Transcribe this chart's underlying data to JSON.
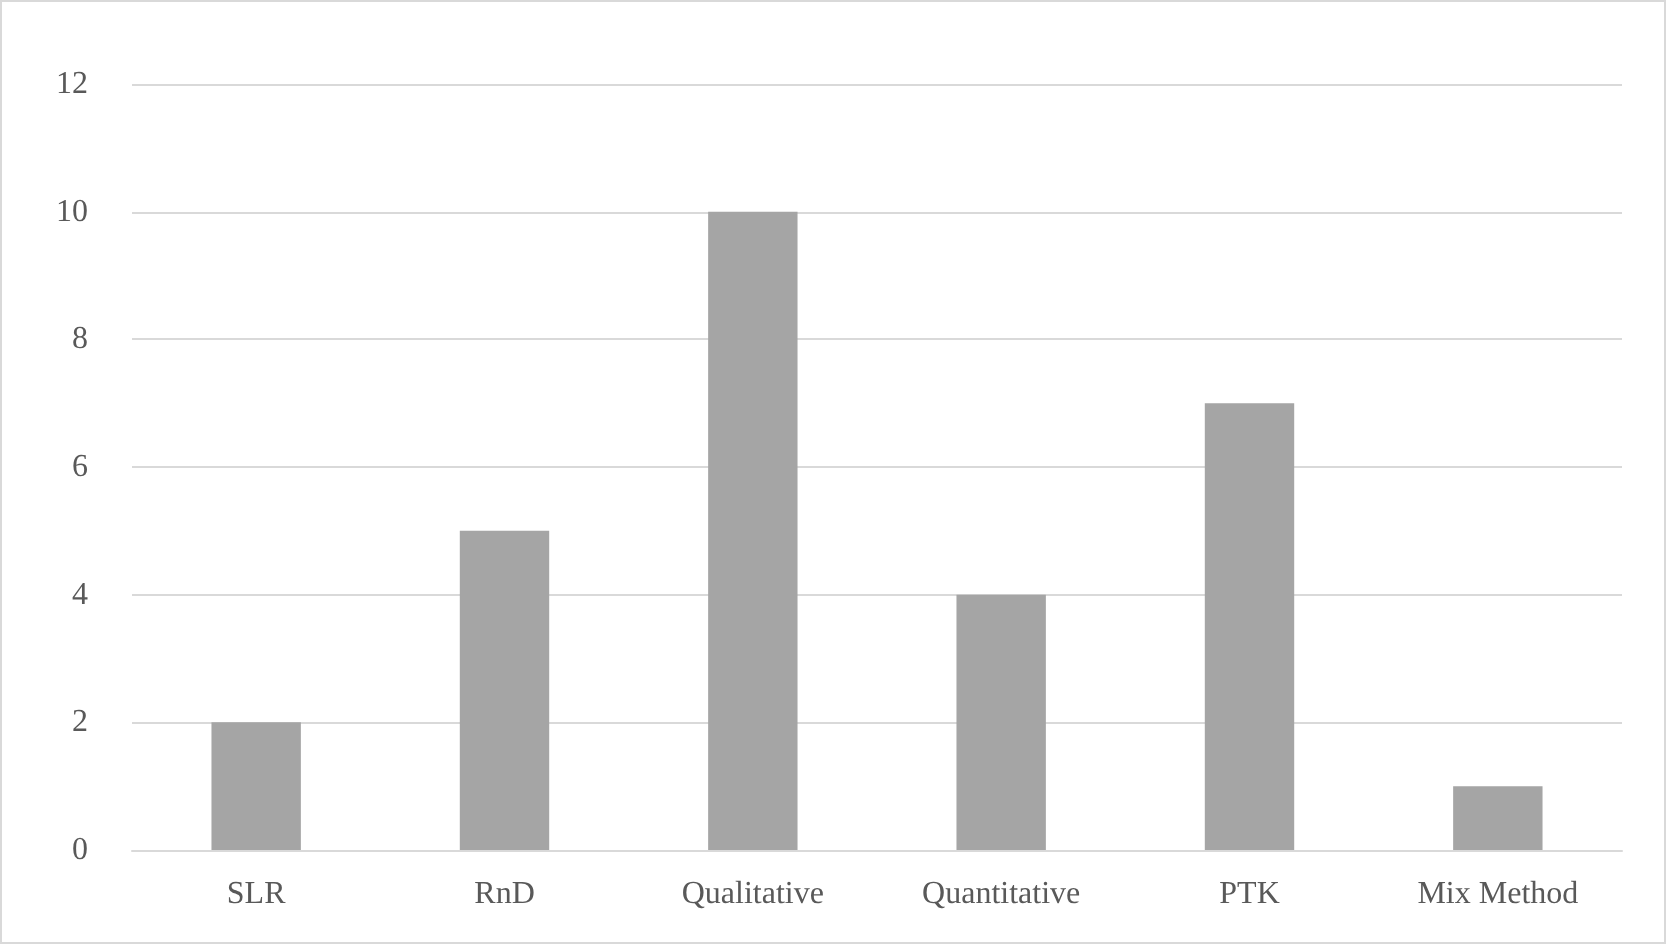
{
  "chart_data": {
    "type": "bar",
    "categories": [
      "SLR",
      "RnD",
      "Qualitative",
      "Quantitative",
      "PTK",
      "Mix Method"
    ],
    "values": [
      2,
      5,
      10,
      4,
      7,
      1
    ],
    "color": "#a5a5a5",
    "ylim": [
      0,
      12
    ],
    "yticks": [
      0,
      2,
      4,
      6,
      8,
      10,
      12
    ],
    "grid": "y"
  }
}
